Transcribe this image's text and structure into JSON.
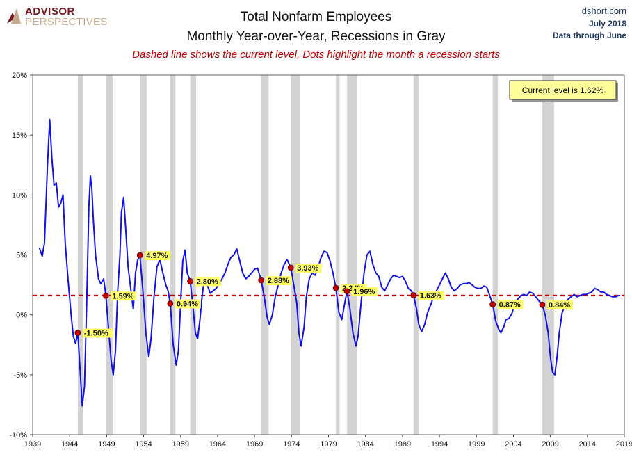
{
  "header": {
    "logo_line1": "ADVISOR",
    "logo_line2": "PERSPECTIVES",
    "title_line1": "Total Nonfarm Employees",
    "title_line2": "Monthly Year-over-Year, Recessions in Gray",
    "subtitle": "Dashed line shows the current level, Dots highlight the month a recession starts",
    "source": "dshort.com",
    "date": "July 2018",
    "data_through": "Data through June"
  },
  "colors": {
    "line": "#1010e8",
    "dashed": "#d00000",
    "recession": "#d3d3d3",
    "dot": "#c00000",
    "label_bg": "#ffff66"
  },
  "chart_data": {
    "type": "line",
    "title": "Total Nonfarm Employees",
    "subtitle": "Monthly Year-over-Year, Recessions in Gray",
    "current_level": 1.62,
    "current_level_label": "Current level is 1.62%",
    "xlim": [
      1939,
      2019
    ],
    "ylim": [
      -10,
      20
    ],
    "x_ticks": [
      "1939",
      "1944",
      "1949",
      "1954",
      "1959",
      "1964",
      "1969",
      "1974",
      "1979",
      "1984",
      "1989",
      "1994",
      "1999",
      "2004",
      "2009",
      "2014",
      "2019"
    ],
    "y_ticks": [
      "-10%",
      "-5%",
      "0%",
      "5%",
      "10%",
      "15%",
      "20%"
    ],
    "grid": false,
    "recessions": [
      [
        1945.1,
        1945.8
      ],
      [
        1948.9,
        1949.8
      ],
      [
        1953.5,
        1954.4
      ],
      [
        1957.6,
        1958.3
      ],
      [
        1960.3,
        1961.1
      ],
      [
        1969.9,
        1970.9
      ],
      [
        1973.9,
        1975.2
      ],
      [
        1980.0,
        1980.5
      ],
      [
        1981.5,
        1982.9
      ],
      [
        1990.5,
        1991.2
      ],
      [
        2001.2,
        2001.9
      ],
      [
        2007.9,
        2009.5
      ]
    ],
    "recession_starts": [
      {
        "x": 1945.1,
        "y": -1.5,
        "label": "-1.50%"
      },
      {
        "x": 1948.9,
        "y": 1.59,
        "label": "1.59%"
      },
      {
        "x": 1953.5,
        "y": 4.97,
        "label": "4.97%"
      },
      {
        "x": 1957.6,
        "y": 0.94,
        "label": "0.94%"
      },
      {
        "x": 1960.3,
        "y": 2.8,
        "label": "2.80%"
      },
      {
        "x": 1969.9,
        "y": 2.88,
        "label": "2.88%"
      },
      {
        "x": 1973.9,
        "y": 3.93,
        "label": "3.93%"
      },
      {
        "x": 1980.0,
        "y": 2.24,
        "label": "2.24%"
      },
      {
        "x": 1981.5,
        "y": 1.96,
        "label": "1.96%"
      },
      {
        "x": 1990.5,
        "y": 1.63,
        "label": "1.63%"
      },
      {
        "x": 2001.2,
        "y": 0.87,
        "label": "0.87%"
      },
      {
        "x": 2007.9,
        "y": 0.84,
        "label": "0.84%"
      }
    ],
    "series": [
      {
        "name": "Total Nonfarm Employees YoY",
        "points": [
          [
            1939.9,
            5.6
          ],
          [
            1940.3,
            4.9
          ],
          [
            1940.6,
            6.0
          ],
          [
            1941.0,
            12.5
          ],
          [
            1941.3,
            16.3
          ],
          [
            1941.6,
            13.0
          ],
          [
            1941.9,
            10.8
          ],
          [
            1942.2,
            11.0
          ],
          [
            1942.5,
            9.0
          ],
          [
            1942.8,
            9.3
          ],
          [
            1943.1,
            10.0
          ],
          [
            1943.4,
            6.0
          ],
          [
            1943.8,
            2.8
          ],
          [
            1944.2,
            0.0
          ],
          [
            1944.5,
            -1.8
          ],
          [
            1944.8,
            -2.4
          ],
          [
            1945.1,
            -1.5
          ],
          [
            1945.4,
            -4.5
          ],
          [
            1945.7,
            -7.6
          ],
          [
            1946.0,
            -6.0
          ],
          [
            1946.3,
            1.0
          ],
          [
            1946.6,
            9.0
          ],
          [
            1946.8,
            11.6
          ],
          [
            1947.0,
            10.5
          ],
          [
            1947.2,
            8.0
          ],
          [
            1947.5,
            5.0
          ],
          [
            1947.9,
            3.0
          ],
          [
            1948.2,
            2.6
          ],
          [
            1948.6,
            3.0
          ],
          [
            1948.9,
            1.59
          ],
          [
            1949.3,
            -1.5
          ],
          [
            1949.6,
            -3.8
          ],
          [
            1949.9,
            -5.0
          ],
          [
            1950.2,
            -3.0
          ],
          [
            1950.5,
            2.0
          ],
          [
            1950.8,
            5.0
          ],
          [
            1951.0,
            8.5
          ],
          [
            1951.3,
            9.8
          ],
          [
            1951.6,
            7.0
          ],
          [
            1951.9,
            4.0
          ],
          [
            1952.3,
            2.0
          ],
          [
            1952.6,
            0.5
          ],
          [
            1952.9,
            3.5
          ],
          [
            1953.2,
            4.6
          ],
          [
            1953.5,
            4.97
          ],
          [
            1953.9,
            2.0
          ],
          [
            1954.3,
            -1.5
          ],
          [
            1954.7,
            -3.5
          ],
          [
            1955.0,
            -2.0
          ],
          [
            1955.4,
            1.5
          ],
          [
            1955.8,
            4.0
          ],
          [
            1956.2,
            4.6
          ],
          [
            1956.6,
            3.5
          ],
          [
            1957.0,
            2.5
          ],
          [
            1957.3,
            2.0
          ],
          [
            1957.6,
            0.94
          ],
          [
            1958.0,
            -2.5
          ],
          [
            1958.4,
            -4.2
          ],
          [
            1958.7,
            -3.0
          ],
          [
            1959.0,
            1.0
          ],
          [
            1959.3,
            4.5
          ],
          [
            1959.6,
            5.4
          ],
          [
            1959.9,
            3.5
          ],
          [
            1960.3,
            2.8
          ],
          [
            1960.7,
            0.5
          ],
          [
            1961.0,
            -1.5
          ],
          [
            1961.3,
            -2.0
          ],
          [
            1961.6,
            -0.5
          ],
          [
            1961.9,
            1.5
          ],
          [
            1962.2,
            3.0
          ],
          [
            1962.6,
            2.5
          ],
          [
            1963.0,
            1.8
          ],
          [
            1963.4,
            2.0
          ],
          [
            1963.8,
            2.2
          ],
          [
            1964.2,
            2.6
          ],
          [
            1964.6,
            3.0
          ],
          [
            1965.0,
            3.5
          ],
          [
            1965.4,
            4.2
          ],
          [
            1965.8,
            4.8
          ],
          [
            1966.2,
            5.0
          ],
          [
            1966.6,
            5.5
          ],
          [
            1967.0,
            4.5
          ],
          [
            1967.4,
            3.5
          ],
          [
            1967.8,
            3.0
          ],
          [
            1968.2,
            3.2
          ],
          [
            1968.6,
            3.5
          ],
          [
            1969.0,
            3.8
          ],
          [
            1969.4,
            3.9
          ],
          [
            1969.9,
            2.88
          ],
          [
            1970.3,
            1.5
          ],
          [
            1970.7,
            -0.2
          ],
          [
            1971.0,
            -0.8
          ],
          [
            1971.4,
            0.0
          ],
          [
            1971.8,
            1.5
          ],
          [
            1972.2,
            2.5
          ],
          [
            1972.6,
            3.5
          ],
          [
            1973.0,
            4.2
          ],
          [
            1973.4,
            4.6
          ],
          [
            1973.9,
            3.93
          ],
          [
            1974.3,
            2.5
          ],
          [
            1974.7,
            1.0
          ],
          [
            1975.0,
            -1.5
          ],
          [
            1975.3,
            -2.6
          ],
          [
            1975.7,
            -1.0
          ],
          [
            1976.0,
            1.5
          ],
          [
            1976.4,
            3.0
          ],
          [
            1976.8,
            3.5
          ],
          [
            1977.2,
            3.3
          ],
          [
            1977.6,
            4.0
          ],
          [
            1978.0,
            4.8
          ],
          [
            1978.4,
            5.3
          ],
          [
            1978.8,
            5.2
          ],
          [
            1979.2,
            4.5
          ],
          [
            1979.6,
            3.5
          ],
          [
            1980.0,
            2.24
          ],
          [
            1980.4,
            0.2
          ],
          [
            1980.8,
            -0.4
          ],
          [
            1981.2,
            1.0
          ],
          [
            1981.5,
            1.96
          ],
          [
            1981.9,
            0.5
          ],
          [
            1982.3,
            -1.5
          ],
          [
            1982.7,
            -2.6
          ],
          [
            1983.0,
            -1.8
          ],
          [
            1983.4,
            1.0
          ],
          [
            1983.8,
            3.5
          ],
          [
            1984.2,
            5.0
          ],
          [
            1984.6,
            5.3
          ],
          [
            1985.0,
            4.2
          ],
          [
            1985.4,
            3.5
          ],
          [
            1985.8,
            3.2
          ],
          [
            1986.2,
            2.3
          ],
          [
            1986.6,
            2.0
          ],
          [
            1987.0,
            2.5
          ],
          [
            1987.4,
            3.0
          ],
          [
            1987.8,
            3.3
          ],
          [
            1988.2,
            3.2
          ],
          [
            1988.6,
            3.1
          ],
          [
            1989.0,
            3.2
          ],
          [
            1989.4,
            2.8
          ],
          [
            1989.8,
            2.2
          ],
          [
            1990.2,
            2.0
          ],
          [
            1990.5,
            1.63
          ],
          [
            1990.9,
            0.5
          ],
          [
            1991.2,
            -0.8
          ],
          [
            1991.6,
            -1.4
          ],
          [
            1992.0,
            -0.8
          ],
          [
            1992.4,
            0.2
          ],
          [
            1992.8,
            0.8
          ],
          [
            1993.2,
            1.5
          ],
          [
            1993.6,
            2.0
          ],
          [
            1994.0,
            2.5
          ],
          [
            1994.4,
            3.0
          ],
          [
            1994.8,
            3.5
          ],
          [
            1995.2,
            3.0
          ],
          [
            1995.6,
            2.3
          ],
          [
            1996.0,
            2.0
          ],
          [
            1996.4,
            2.2
          ],
          [
            1996.8,
            2.5
          ],
          [
            1997.2,
            2.6
          ],
          [
            1997.6,
            2.6
          ],
          [
            1998.0,
            2.7
          ],
          [
            1998.4,
            2.5
          ],
          [
            1998.8,
            2.3
          ],
          [
            1999.2,
            2.2
          ],
          [
            1999.6,
            2.2
          ],
          [
            2000.0,
            2.4
          ],
          [
            2000.4,
            2.3
          ],
          [
            2000.8,
            1.6
          ],
          [
            2001.2,
            0.87
          ],
          [
            2001.6,
            -0.5
          ],
          [
            2002.0,
            -1.2
          ],
          [
            2002.3,
            -1.5
          ],
          [
            2002.7,
            -1.0
          ],
          [
            2003.0,
            -0.4
          ],
          [
            2003.4,
            -0.3
          ],
          [
            2003.8,
            0.1
          ],
          [
            2004.2,
            1.0
          ],
          [
            2004.6,
            1.3
          ],
          [
            2005.0,
            1.6
          ],
          [
            2005.4,
            1.7
          ],
          [
            2005.8,
            1.6
          ],
          [
            2006.2,
            1.9
          ],
          [
            2006.6,
            1.8
          ],
          [
            2007.0,
            1.5
          ],
          [
            2007.4,
            1.2
          ],
          [
            2007.9,
            0.84
          ],
          [
            2008.3,
            0.0
          ],
          [
            2008.7,
            -1.5
          ],
          [
            2009.0,
            -3.5
          ],
          [
            2009.3,
            -4.8
          ],
          [
            2009.6,
            -5.0
          ],
          [
            2009.9,
            -3.5
          ],
          [
            2010.2,
            -1.5
          ],
          [
            2010.6,
            0.2
          ],
          [
            2011.0,
            0.8
          ],
          [
            2011.4,
            1.3
          ],
          [
            2011.8,
            1.5
          ],
          [
            2012.2,
            1.7
          ],
          [
            2012.6,
            1.5
          ],
          [
            2013.0,
            1.6
          ],
          [
            2013.4,
            1.7
          ],
          [
            2013.8,
            1.7
          ],
          [
            2014.2,
            1.8
          ],
          [
            2014.6,
            1.9
          ],
          [
            2015.0,
            2.2
          ],
          [
            2015.4,
            2.1
          ],
          [
            2015.8,
            1.9
          ],
          [
            2016.2,
            1.9
          ],
          [
            2016.6,
            1.7
          ],
          [
            2017.0,
            1.6
          ],
          [
            2017.4,
            1.5
          ],
          [
            2017.8,
            1.5
          ],
          [
            2018.2,
            1.6
          ],
          [
            2018.45,
            1.62
          ]
        ]
      }
    ]
  }
}
